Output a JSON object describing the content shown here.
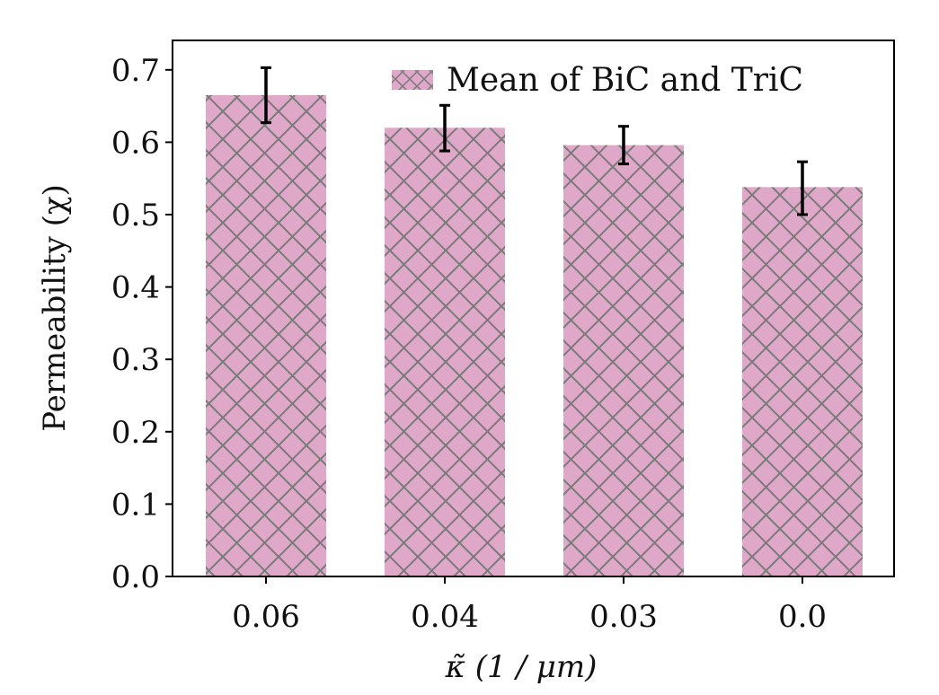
{
  "chart_data": {
    "type": "bar",
    "title": "",
    "categories": [
      "0.06",
      "0.04",
      "0.03",
      "0.0"
    ],
    "series": [
      {
        "name": "Mean of BiC and TriC",
        "values": [
          0.665,
          0.62,
          0.596,
          0.538
        ],
        "error_low": [
          0.627,
          0.588,
          0.57,
          0.5
        ],
        "error_high": [
          0.703,
          0.651,
          0.622,
          0.573
        ],
        "color": "#dfa8c8",
        "hatch": "cross-diagonal",
        "hatch_color": "#7a7a7a"
      }
    ],
    "xlabel": "κ̃ (1 / μm)",
    "ylabel": "Permeability (χ)",
    "ylim": [
      0.0,
      0.72
    ],
    "yticks": [
      "0.0",
      "0.1",
      "0.2",
      "0.3",
      "0.4",
      "0.5",
      "0.6",
      "0.7"
    ],
    "grid": false,
    "legend": {
      "placement": "top-right",
      "label": "Mean of BiC and TriC"
    }
  }
}
